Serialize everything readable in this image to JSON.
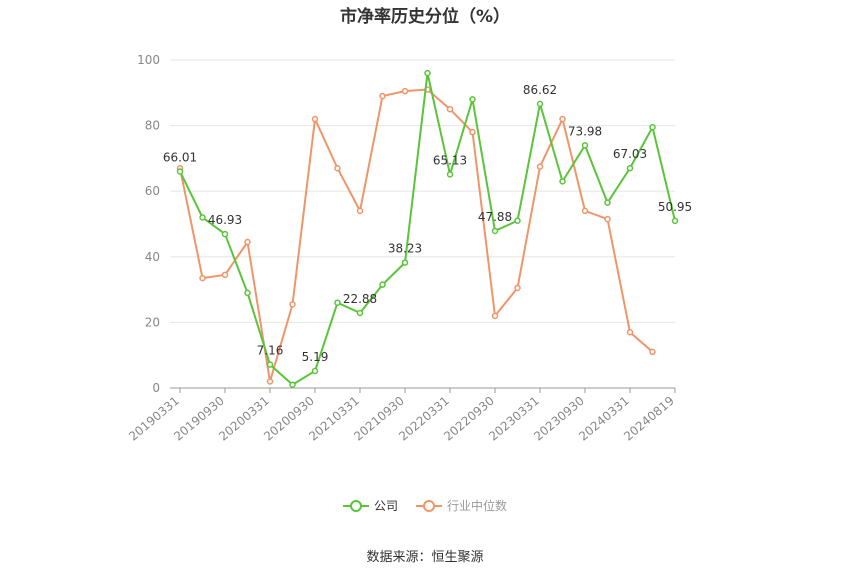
{
  "title": "市净率历史分位（%）",
  "source": "数据来源：恒生聚源",
  "legend": [
    {
      "name": "公司",
      "color": "#5ac43a"
    },
    {
      "name": "行业中位数",
      "color": "#f0956a"
    }
  ],
  "chart_data": {
    "type": "line",
    "title": "市净率历史分位（%）",
    "ylim": [
      0,
      100
    ],
    "yticks": [
      0,
      20,
      40,
      60,
      80,
      100
    ],
    "xtick_labels": [
      "20190331",
      "20190930",
      "20200331",
      "20200930",
      "20210331",
      "20210930",
      "20220331",
      "20220930",
      "20230331",
      "20230930",
      "20240331",
      "20240819"
    ],
    "grid": true,
    "legend_position": "bottom",
    "series": [
      {
        "name": "公司",
        "color": "#5ac43a",
        "values": [
          66.01,
          52,
          46.93,
          29,
          7.16,
          1,
          5.19,
          26,
          22.88,
          31.5,
          38.23,
          96,
          65.13,
          88,
          47.88,
          51,
          86.62,
          63,
          73.98,
          56.5,
          67.03,
          79.5,
          50.95
        ]
      },
      {
        "name": "行业中位数",
        "color": "#f0956a",
        "values": [
          67,
          33.5,
          34.5,
          44.5,
          2,
          25.5,
          82,
          67,
          54,
          89,
          90.5,
          91,
          85,
          78,
          22,
          30.5,
          67.5,
          82,
          54,
          51.5,
          17,
          11,
          null
        ]
      }
    ],
    "point_labels": [
      {
        "index": 0,
        "text": "66.01"
      },
      {
        "index": 2,
        "text": "46.93"
      },
      {
        "index": 4,
        "text": "7.16"
      },
      {
        "index": 6,
        "text": "5.19"
      },
      {
        "index": 8,
        "text": "22.88"
      },
      {
        "index": 10,
        "text": "38.23"
      },
      {
        "index": 12,
        "text": "65.13"
      },
      {
        "index": 14,
        "text": "47.88"
      },
      {
        "index": 16,
        "text": "86.62"
      },
      {
        "index": 18,
        "text": "73.98"
      },
      {
        "index": 20,
        "text": "67.03"
      },
      {
        "index": 22,
        "text": "50.95"
      }
    ]
  }
}
